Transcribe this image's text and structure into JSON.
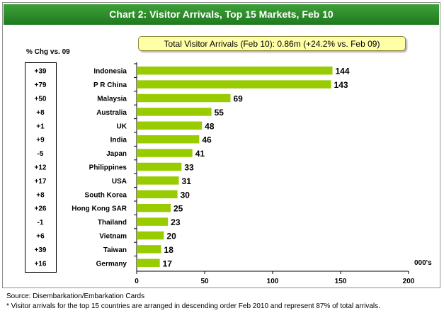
{
  "header": {
    "title": "Chart 2: Visitor Arrivals, Top 15 Markets, Feb 10",
    "callout": "Total Visitor Arrivals (Feb 10): 0.86m (+24.2% vs. Feb 09)",
    "change_title": "% Chg vs. 09",
    "unit_label": "000's"
  },
  "footer": {
    "source": "Source: Disembarkation/Embarkation Cards",
    "note": "* Visitor arrivals for the top 15 countries are arranged in descending order Feb 2010 and represent 87% of total arrivals."
  },
  "colors": {
    "bar": "#99cc00",
    "title_bar": "#2e8b2e",
    "callout_bg": "#ffffa8"
  },
  "chart_data": {
    "type": "bar",
    "orientation": "horizontal",
    "categories": [
      "Indonesia",
      "P R China",
      "Malaysia",
      "Australia",
      "UK",
      "India",
      "Japan",
      "Philippines",
      "USA",
      "South Korea",
      "Hong Kong SAR",
      "Thailand",
      "Vietnam",
      "Taiwan",
      "Germany"
    ],
    "values": [
      144,
      143,
      69,
      55,
      48,
      46,
      41,
      33,
      31,
      30,
      25,
      23,
      20,
      18,
      17
    ],
    "pct_change": [
      "+39",
      "+79",
      "+50",
      "+8",
      "+1",
      "+9",
      "-5",
      "+12",
      "+17",
      "+8",
      "+26",
      "-1",
      "+6",
      "+39",
      "+16"
    ],
    "xlim": [
      0,
      200
    ],
    "xticks": [
      0,
      50,
      100,
      150,
      200
    ],
    "grid": false
  }
}
